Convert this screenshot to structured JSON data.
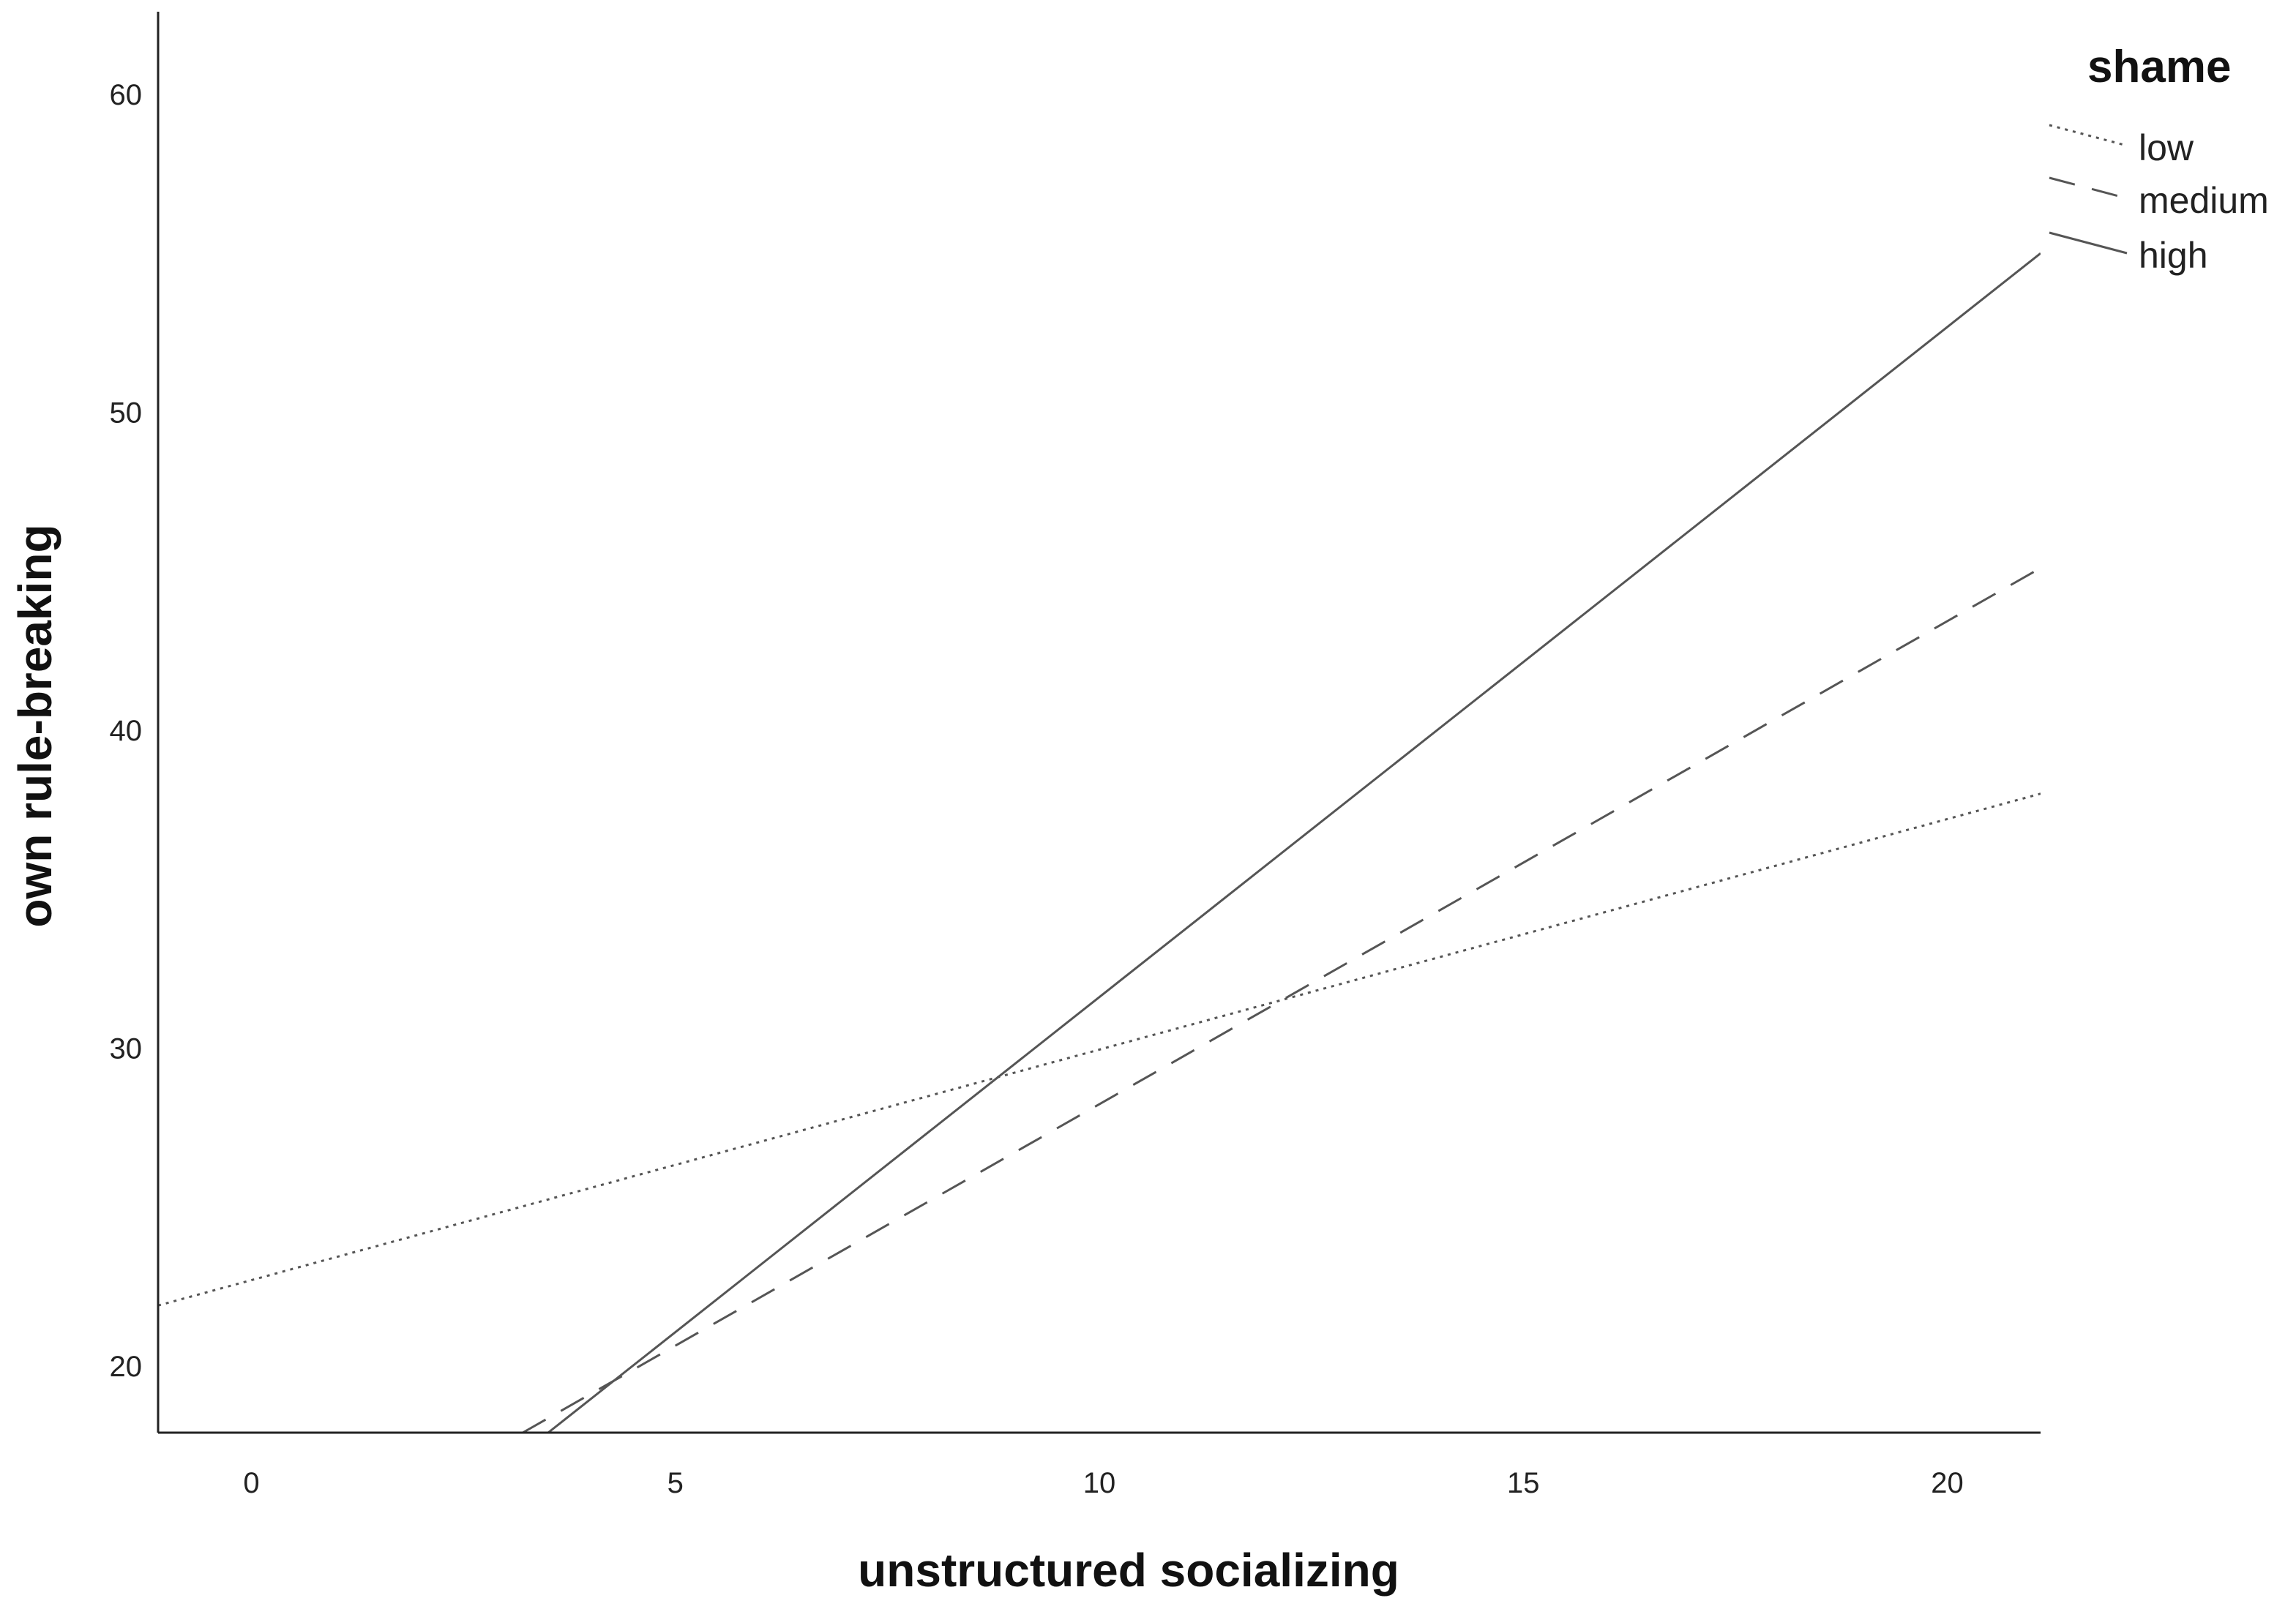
{
  "chart_data": {
    "type": "line",
    "title": "",
    "xlabel": "unstructured socializing",
    "ylabel": "own rule-breaking",
    "xlim": [
      -1.1,
      21.1
    ],
    "ylim": [
      17.9,
      62.6
    ],
    "xticks": [
      0,
      5,
      10,
      15,
      20
    ],
    "yticks": [
      20,
      30,
      40,
      50,
      60
    ],
    "grid": false,
    "legend": {
      "title": "shame",
      "position": "top-right",
      "entries": [
        "low",
        "medium",
        "high"
      ]
    },
    "series": [
      {
        "name": "low",
        "style": "dotted",
        "color": "#555555",
        "x": [
          -1.1,
          21.1
        ],
        "y": [
          21.9,
          38.0
        ]
      },
      {
        "name": "medium",
        "style": "dashed",
        "color": "#555555",
        "x": [
          3.2,
          21.1
        ],
        "y": [
          17.9,
          45.1
        ]
      },
      {
        "name": "high",
        "style": "solid",
        "color": "#555555",
        "x": [
          3.5,
          21.1
        ],
        "y": [
          17.9,
          55.0
        ]
      }
    ]
  }
}
